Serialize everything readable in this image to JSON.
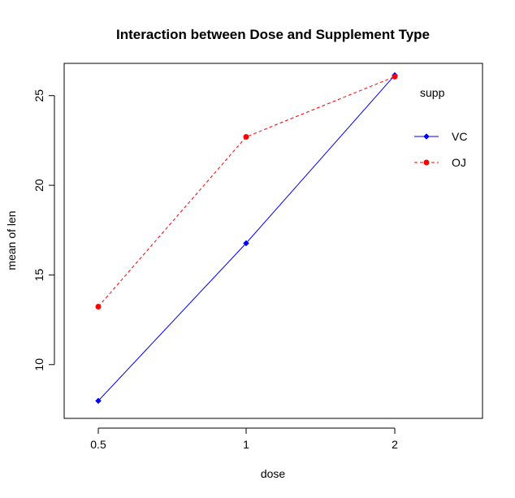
{
  "chart_data": {
    "type": "line",
    "title": "Interaction between Dose and Supplement Type",
    "xlabel": "dose",
    "ylabel": "mean of len",
    "categories": [
      "0.5",
      "1",
      "2"
    ],
    "ylim": [
      7.0,
      26.8
    ],
    "yticks": [
      "10",
      "15",
      "20",
      "25"
    ],
    "grid": false,
    "legend": {
      "title": "supp",
      "placement": "top-right",
      "entries": [
        "VC",
        "OJ"
      ]
    },
    "series": [
      {
        "name": "VC",
        "values": [
          7.98,
          16.77,
          26.14
        ],
        "color": "#0000ff",
        "line": "solid",
        "marker": "diamond"
      },
      {
        "name": "OJ",
        "values": [
          13.23,
          22.7,
          26.06
        ],
        "color": "#ff0000",
        "line": "dashed",
        "marker": "circle"
      }
    ]
  }
}
